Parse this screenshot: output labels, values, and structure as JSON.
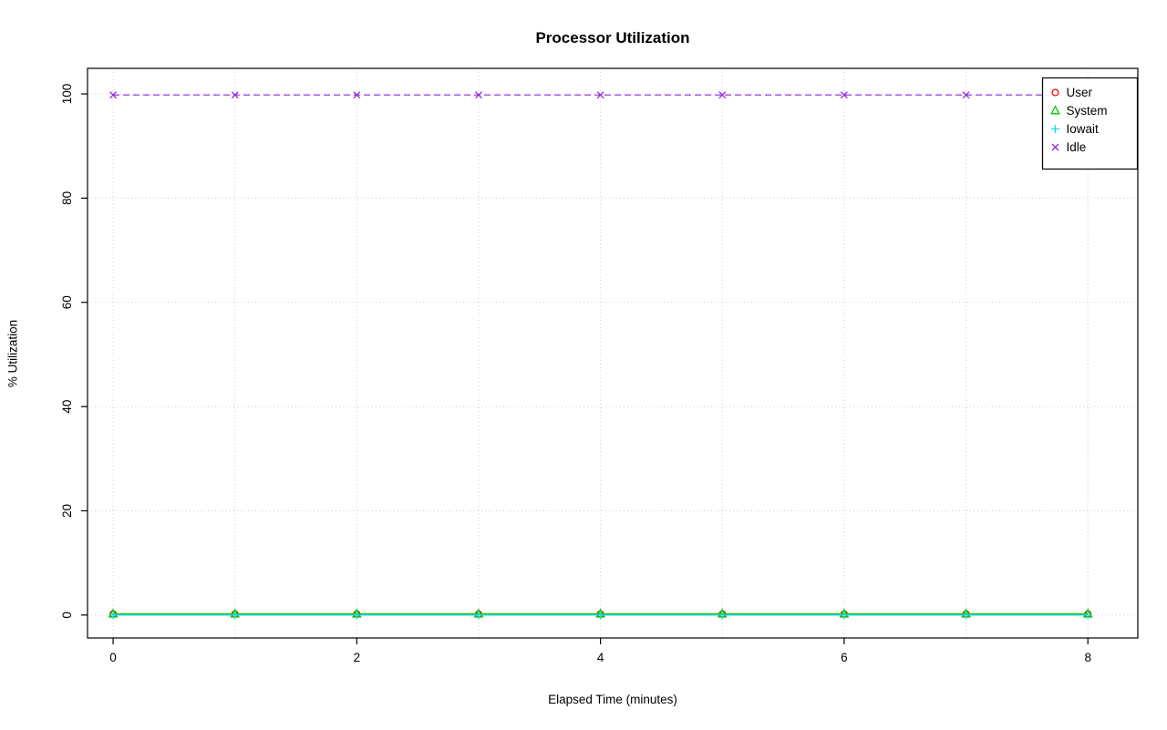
{
  "chart_data": {
    "type": "line",
    "title": "Processor Utilization",
    "xlabel": "Elapsed Time (minutes)",
    "ylabel": "% Utilization",
    "x": [
      0,
      1,
      2,
      3,
      4,
      5,
      6,
      7,
      8
    ],
    "series": [
      {
        "name": "User",
        "color": "#FF0000",
        "marker": "circle",
        "line": "solid",
        "values": [
          0.2,
          0.2,
          0.2,
          0.2,
          0.2,
          0.2,
          0.2,
          0.2,
          0.2
        ]
      },
      {
        "name": "System",
        "color": "#00CD00",
        "marker": "triangle",
        "line": "solid",
        "values": [
          0.2,
          0.2,
          0.2,
          0.2,
          0.2,
          0.2,
          0.2,
          0.2,
          0.2
        ]
      },
      {
        "name": "Iowait",
        "color": "#00E5E5",
        "marker": "plus",
        "line": "solid",
        "values": [
          0.0,
          0.0,
          0.0,
          0.0,
          0.0,
          0.0,
          0.0,
          0.0,
          0.0
        ]
      },
      {
        "name": "Idle",
        "color": "#8A2BE2",
        "marker": "x",
        "line": "dashed",
        "values": [
          99.8,
          99.8,
          99.8,
          99.8,
          99.8,
          99.8,
          99.8,
          99.8,
          99.8
        ]
      }
    ],
    "xticks": [
      0,
      2,
      4,
      6,
      8
    ],
    "yticks": [
      0,
      20,
      40,
      60,
      80,
      100
    ],
    "x_gridlines": [
      0,
      1,
      2,
      3,
      4,
      5,
      6,
      7,
      8
    ],
    "xlim": [
      -0.21,
      8.41
    ],
    "ylim": [
      -4.4,
      104.9
    ],
    "grid": true,
    "grid_color": "#CFCFCF",
    "axis_color": "#000000",
    "legend_position": "top-right",
    "legend": [
      "User",
      "System",
      "Iowait",
      "Idle"
    ]
  }
}
